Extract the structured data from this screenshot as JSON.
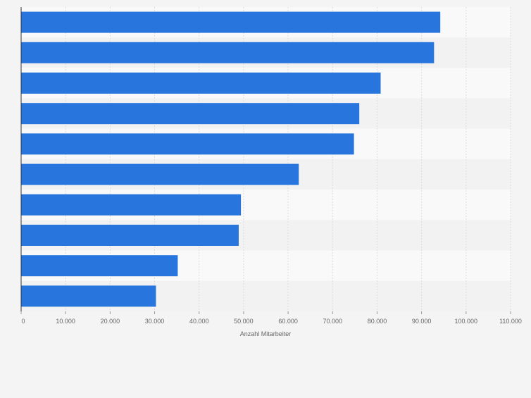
{
  "chart_data": {
    "type": "bar",
    "orientation": "horizontal",
    "title": "",
    "xlabel": "Anzahl Mitarbeiter",
    "ylabel": "",
    "categories": [
      "",
      "",
      "",
      "",
      "",
      "",
      "",
      "",
      "",
      ""
    ],
    "values": [
      94200,
      92800,
      80800,
      76000,
      74800,
      62400,
      49400,
      48900,
      35200,
      30300
    ],
    "xlim": [
      0,
      110000
    ],
    "xticks": [
      0,
      10000,
      20000,
      30000,
      40000,
      50000,
      60000,
      70000,
      80000,
      90000,
      100000,
      110000
    ],
    "xtick_labels": [
      "0",
      "10.000",
      "20.000",
      "30.000",
      "40.000",
      "50.000",
      "60.000",
      "70.000",
      "80.000",
      "90.000",
      "100.000",
      "110.000"
    ],
    "grid": true,
    "legend": "none",
    "colors": {
      "bar": "#2876dd",
      "band_light": "#f9f9f9",
      "band_dark": "#f2f2f2",
      "grid": "#dddddd",
      "axis": "#333333",
      "tick_text": "#666666",
      "page": "#f4f4f4"
    }
  }
}
